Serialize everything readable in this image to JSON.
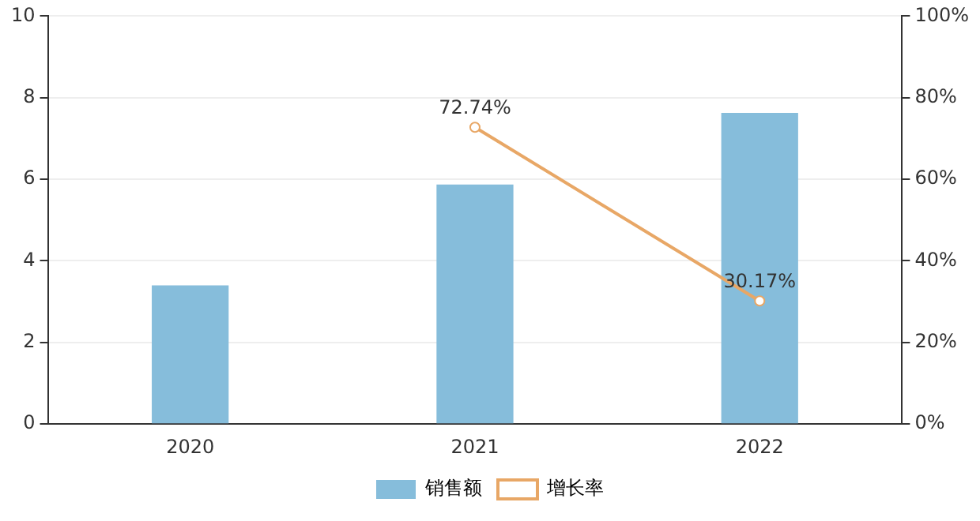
{
  "chart_data": {
    "type": "bar",
    "categories": [
      "2020",
      "2021",
      "2022"
    ],
    "series": [
      {
        "name": "销售额",
        "color": "#86bddb",
        "values": [
          3.4,
          5.87,
          7.63
        ]
      },
      {
        "name": "增长率",
        "type": "line",
        "axis": "y2",
        "color": "#e8a766",
        "values": [
          null,
          72.74,
          30.17
        ],
        "value_labels": [
          null,
          "72.74%",
          "30.17%"
        ]
      }
    ],
    "ylim": [
      0,
      10
    ],
    "yticks": [
      0,
      2,
      4,
      6,
      8,
      10
    ],
    "y2lim": [
      0,
      100
    ],
    "y2ticks": [
      {
        "value": 0,
        "label": "0%"
      },
      {
        "value": 20,
        "label": "20%"
      },
      {
        "value": 40,
        "label": "40%"
      },
      {
        "value": 60,
        "label": "60%"
      },
      {
        "value": 80,
        "label": "80%"
      },
      {
        "value": 100,
        "label": "100%"
      }
    ],
    "grid": "y",
    "legend": "bottom",
    "marker": "circle",
    "line_style": "solid"
  }
}
